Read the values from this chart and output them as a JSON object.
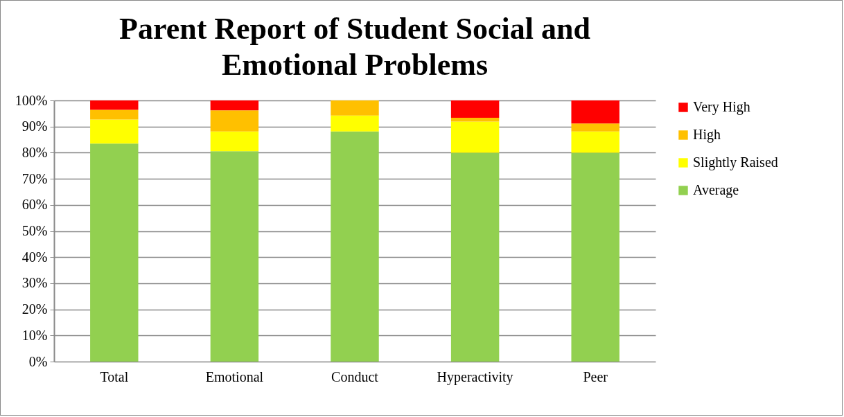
{
  "chart_data": {
    "type": "bar",
    "title": "Parent Report of Student Social and Emotional Problems",
    "categories": [
      "Total",
      "Emotional",
      "Conduct",
      "Hyperactivity",
      "Peer"
    ],
    "stacked": true,
    "series": [
      {
        "name": "Average",
        "color": "#92d050",
        "values": [
          83.5,
          80.6,
          88.1,
          80,
          80
        ]
      },
      {
        "name": "Slightly Raised",
        "color": "#ffff00",
        "values": [
          9.2,
          7.5,
          6.1,
          11.9,
          8.1
        ]
      },
      {
        "name": "High",
        "color": "#ffc000",
        "values": [
          3.7,
          8.1,
          5.8,
          1.5,
          3.1
        ]
      },
      {
        "name": "Very High",
        "color": "#ff0000",
        "values": [
          3.6,
          3.8,
          0,
          6.6,
          8.8
        ]
      }
    ],
    "ylim": [
      0,
      100
    ],
    "yticks": [
      {
        "value": 0,
        "label": "0%"
      },
      {
        "value": 10,
        "label": "10%"
      },
      {
        "value": 20,
        "label": "20%"
      },
      {
        "value": 30,
        "label": "30%"
      },
      {
        "value": 40,
        "label": "40%"
      },
      {
        "value": 50,
        "label": "50%"
      },
      {
        "value": 60,
        "label": "60%"
      },
      {
        "value": 70,
        "label": "70%"
      },
      {
        "value": 80,
        "label": "80%"
      },
      {
        "value": 90,
        "label": "90%"
      },
      {
        "value": 100,
        "label": "100%"
      }
    ],
    "grid": "y",
    "legend": "right"
  }
}
